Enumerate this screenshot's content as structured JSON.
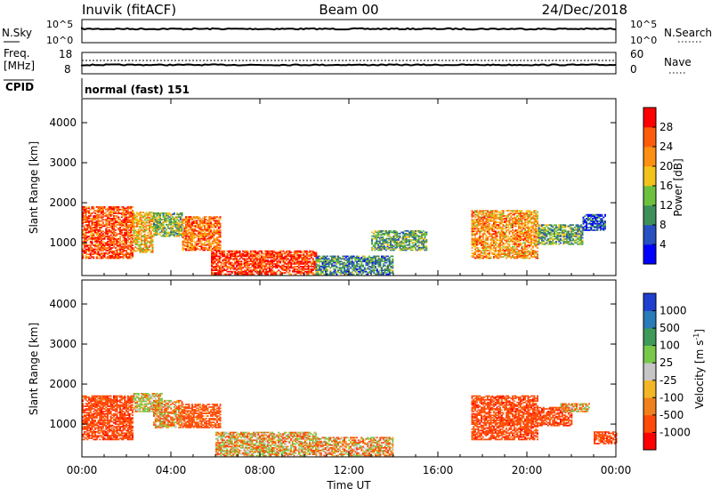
{
  "header": {
    "station": "Inuvik (fitACF)",
    "beam": "Beam 00",
    "date": "24/Dec/2018"
  },
  "panel_nsky": {
    "left_label": "N.Sky",
    "left_ticks": [
      "10^5",
      "10^0"
    ],
    "right_ticks": [
      "10^5",
      "10^0"
    ],
    "right_label": "N.Search"
  },
  "panel_freq": {
    "left_label_1": "Freq.",
    "left_label_2": "[MHz]",
    "left_ticks": [
      "18",
      "8"
    ],
    "right_ticks": [
      "60",
      "0"
    ],
    "right_label": "Nave"
  },
  "cpid": {
    "label": "CPID",
    "value": "normal (fast) 151"
  },
  "power_panel": {
    "ylabel": "Slant Range [km]",
    "yticks": [
      "4000",
      "3000",
      "2000",
      "1000"
    ],
    "colorbar_label": "Power [dB]",
    "colorbar_ticks": [
      "28",
      "24",
      "20",
      "16",
      "12",
      "8",
      "4"
    ],
    "colors": [
      "#0000ff",
      "#2850c0",
      "#3f8f5a",
      "#6ec13e",
      "#f3c31b",
      "#fd8f12",
      "#ff5c0a",
      "#ff0000"
    ]
  },
  "velocity_panel": {
    "ylabel": "Slant Range [km]",
    "yticks": [
      "4000",
      "3000",
      "2000",
      "1000"
    ],
    "colorbar_label": "Velocity [m s",
    "colorbar_label_sup": "-1",
    "colorbar_label_end": "]",
    "colorbar_ticks": [
      "1000",
      "500",
      "100",
      "25",
      "-25",
      "-100",
      "-500",
      "-1000"
    ],
    "colors": [
      "#1f3fd0",
      "#2a7bb8",
      "#3f9a59",
      "#79c84a",
      "#c6c6c6",
      "#f2b627",
      "#f0801c",
      "#ff4a0a",
      "#ff0000"
    ]
  },
  "xaxis": {
    "label": "Time UT",
    "ticks": [
      "00:00",
      "04:00",
      "08:00",
      "12:00",
      "16:00",
      "20:00",
      "00:00"
    ]
  },
  "chart_data": {
    "type": "heatmap",
    "x_unit": "hours UT",
    "xlim": [
      0,
      24
    ],
    "y_unit": "km",
    "ylim": [
      180,
      4600
    ],
    "power_scale_db": [
      0,
      32
    ],
    "velocity_scale_ms": [
      -1000,
      1000
    ],
    "power_regions": [
      {
        "t": [
          0.0,
          2.3
        ],
        "r": [
          600,
          1900
        ],
        "dB": 26
      },
      {
        "t": [
          2.3,
          3.2
        ],
        "r": [
          750,
          1750
        ],
        "dB": 20
      },
      {
        "t": [
          3.2,
          4.5
        ],
        "r": [
          1150,
          1750
        ],
        "dB": 14
      },
      {
        "t": [
          4.5,
          6.2
        ],
        "r": [
          800,
          1650
        ],
        "dB": 24
      },
      {
        "t": [
          5.8,
          10.5
        ],
        "r": [
          200,
          800
        ],
        "dB": 28
      },
      {
        "t": [
          10.5,
          14.0
        ],
        "r": [
          200,
          650
        ],
        "dB": 10
      },
      {
        "t": [
          13.0,
          15.5
        ],
        "r": [
          800,
          1300
        ],
        "dB": 12
      },
      {
        "t": [
          17.5,
          20.5
        ],
        "r": [
          600,
          1800
        ],
        "dB": 22
      },
      {
        "t": [
          20.5,
          22.5
        ],
        "r": [
          950,
          1450
        ],
        "dB": 12
      },
      {
        "t": [
          22.5,
          23.5
        ],
        "r": [
          1300,
          1700
        ],
        "dB": 6
      }
    ],
    "velocity_regions": [
      {
        "t": [
          0.0,
          2.3
        ],
        "r": [
          600,
          1700
        ],
        "v": -300
      },
      {
        "t": [
          2.3,
          3.6
        ],
        "r": [
          1300,
          1750
        ],
        "v": 80
      },
      {
        "t": [
          3.2,
          4.5
        ],
        "r": [
          900,
          1600
        ],
        "v": -60
      },
      {
        "t": [
          4.5,
          6.2
        ],
        "r": [
          900,
          1500
        ],
        "v": -250
      },
      {
        "t": [
          6.0,
          10.5
        ],
        "r": [
          200,
          800
        ],
        "v": 0
      },
      {
        "t": [
          10.5,
          14.0
        ],
        "r": [
          200,
          650
        ],
        "v": -40
      },
      {
        "t": [
          17.5,
          20.5
        ],
        "r": [
          600,
          1700
        ],
        "v": -300
      },
      {
        "t": [
          20.5,
          22.0
        ],
        "r": [
          950,
          1400
        ],
        "v": -300
      },
      {
        "t": [
          21.5,
          22.8
        ],
        "r": [
          1300,
          1500
        ],
        "v": 0
      },
      {
        "t": [
          23.0,
          24.0
        ],
        "r": [
          500,
          800
        ],
        "v": -300
      }
    ]
  }
}
